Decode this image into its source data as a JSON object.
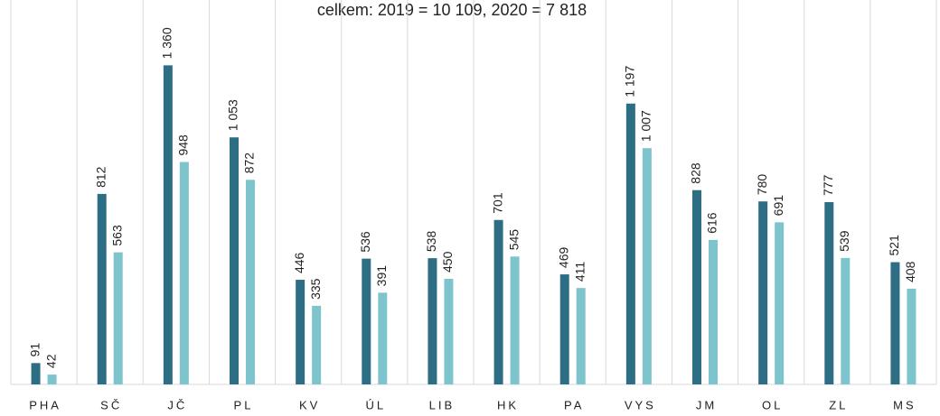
{
  "chart_data": {
    "type": "bar",
    "subtitle": "celkem: 2019 = 10 109, 2020 = 7 818",
    "categories": [
      "PHA",
      "SČ",
      "JČ",
      "PL",
      "KV",
      "ÚL",
      "LIB",
      "HK",
      "PA",
      "VYS",
      "JM",
      "OL",
      "ZL",
      "MS"
    ],
    "series": [
      {
        "color": "#2e6e85",
        "values": [
          91,
          812,
          1360,
          1053,
          446,
          536,
          538,
          701,
          469,
          1197,
          828,
          780,
          777,
          521
        ],
        "value_labels": [
          "91",
          "812",
          "1 360",
          "1 053",
          "446",
          "536",
          "538",
          "701",
          "469",
          "1 197",
          "828",
          "780",
          "777",
          "521"
        ]
      },
      {
        "color": "#7ec4cc",
        "values": [
          42,
          563,
          948,
          872,
          335,
          391,
          450,
          545,
          411,
          1007,
          616,
          691,
          539,
          408
        ],
        "value_labels": [
          "42",
          "563",
          "948",
          "872",
          "335",
          "391",
          "450",
          "545",
          "411",
          "1 007",
          "616",
          "691",
          "539",
          "408"
        ]
      }
    ],
    "ylim": [
      0,
      1400
    ]
  }
}
